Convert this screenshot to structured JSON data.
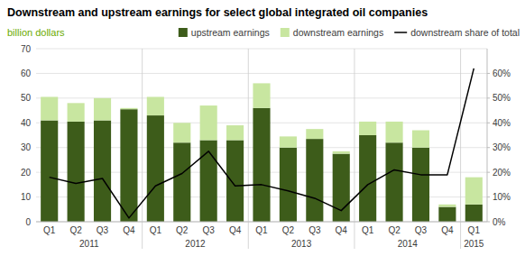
{
  "chart_data": {
    "type": "bar",
    "title": "Downstream and upstream earnings for select global integrated oil companies",
    "y_label": "billion dollars",
    "categories": [
      "Q1",
      "Q2",
      "Q3",
      "Q4",
      "Q1",
      "Q2",
      "Q3",
      "Q4",
      "Q1",
      "Q2",
      "Q3",
      "Q4",
      "Q1",
      "Q2",
      "Q3",
      "Q4",
      "Q1"
    ],
    "annotations": [
      {
        "text": "2011",
        "start": 0,
        "end": 3
      },
      {
        "text": "2012",
        "start": 4,
        "end": 7
      },
      {
        "text": "2013",
        "start": 8,
        "end": 11
      },
      {
        "text": "2014",
        "start": 12,
        "end": 15
      },
      {
        "text": "2015",
        "start": 16,
        "end": 16
      }
    ],
    "stacked": true,
    "grid": true,
    "legend": "upper right",
    "series": [
      {
        "name": "upstream earnings",
        "color": "#3d5c1a",
        "values": [
          41,
          40.5,
          41,
          45.5,
          43,
          32,
          33,
          33,
          46,
          30,
          33.5,
          27.5,
          35,
          32,
          30,
          6,
          7
        ]
      },
      {
        "name": "downstream earnings",
        "color": "#c8e6a0",
        "values": [
          9.5,
          7.5,
          9,
          0.5,
          7.5,
          8,
          14,
          6,
          10,
          4.5,
          4,
          1,
          5.5,
          8.5,
          7,
          1,
          11
        ]
      },
      {
        "name": "downstream share of total",
        "type": "line",
        "axis": "y2",
        "color": "#000000",
        "values": [
          18,
          15.5,
          17.5,
          1.5,
          14.5,
          19.5,
          28.5,
          14.5,
          15,
          12.5,
          9.5,
          4.5,
          15,
          21,
          19,
          19,
          62
        ]
      }
    ],
    "ylim": [
      0,
      70
    ],
    "yticks": [
      0,
      10,
      20,
      30,
      40,
      50,
      60,
      70
    ],
    "y2lim": [
      0,
      70
    ],
    "y2ticks": [
      {
        "value": 0,
        "label": "0%"
      },
      {
        "value": 10,
        "label": "10%"
      },
      {
        "value": 20,
        "label": "20%"
      },
      {
        "value": 30,
        "label": "30%"
      },
      {
        "value": 40,
        "label": "40%"
      },
      {
        "value": 50,
        "label": "50%"
      },
      {
        "value": 60,
        "label": "60%"
      }
    ]
  }
}
